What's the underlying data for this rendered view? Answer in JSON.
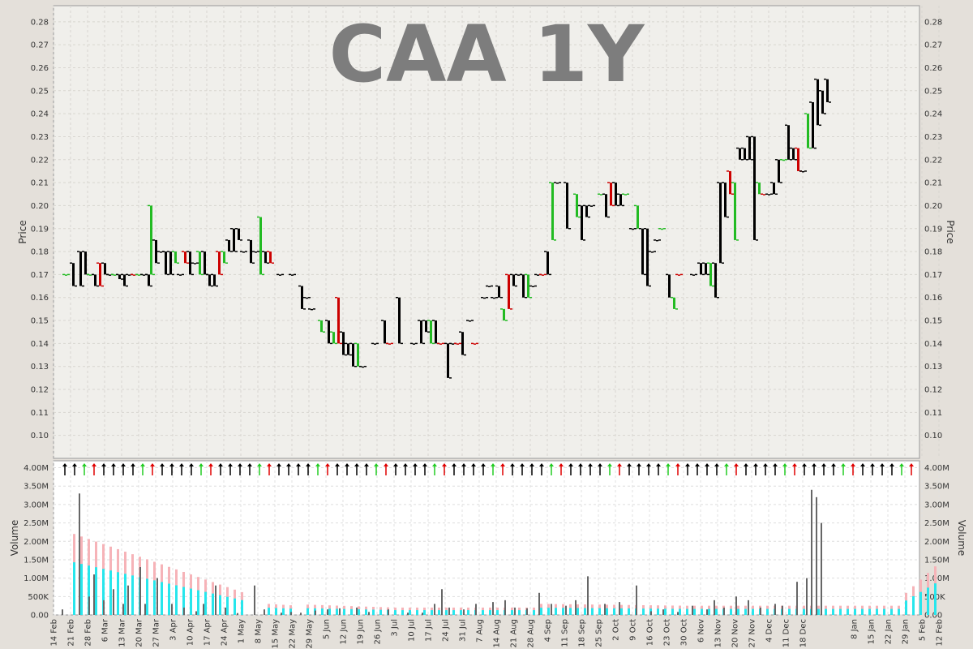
{
  "chart_data": [
    {
      "type": "ohlc",
      "title": "CAA 1Y",
      "ylabel": "Price",
      "ylim": [
        0.09,
        0.287
      ],
      "yticks": [
        "0.10",
        "0.11",
        "0.12",
        "0.13",
        "0.14",
        "0.15",
        "0.16",
        "0.17",
        "0.18",
        "0.19",
        "0.20",
        "0.21",
        "0.22",
        "0.23",
        "0.24",
        "0.25",
        "0.26",
        "0.27",
        "0.28"
      ],
      "grid": true,
      "series": [
        {
          "name": "price",
          "points": [
            [
              0,
              0.17,
              0.17
            ],
            [
              3,
              0.165,
              0.175
            ],
            [
              6,
              0.165,
              0.18
            ],
            [
              8,
              0.17,
              0.18
            ],
            [
              10,
              0.17,
              0.17
            ],
            [
              12,
              0.165,
              0.17
            ],
            [
              14,
              0.165,
              0.175
            ],
            [
              16,
              0.17,
              0.175
            ],
            [
              18,
              0.17,
              0.17
            ],
            [
              20,
              0.17,
              0.17
            ],
            [
              22,
              0.168,
              0.17
            ],
            [
              24,
              0.165,
              0.17
            ],
            [
              26,
              0.17,
              0.17
            ],
            [
              28,
              0.17,
              0.17
            ],
            [
              30,
              0.17,
              0.17
            ],
            [
              32,
              0.17,
              0.17
            ],
            [
              34,
              0.165,
              0.17
            ],
            [
              35,
              0.17,
              0.2
            ],
            [
              37,
              0.175,
              0.185
            ],
            [
              39,
              0.18,
              0.18
            ],
            [
              41,
              0.17,
              0.18
            ],
            [
              43,
              0.17,
              0.18
            ],
            [
              45,
              0.175,
              0.18
            ],
            [
              47,
              0.17,
              0.17
            ],
            [
              49,
              0.175,
              0.18
            ],
            [
              51,
              0.17,
              0.18
            ],
            [
              53,
              0.175,
              0.175
            ],
            [
              55,
              0.17,
              0.18
            ],
            [
              57,
              0.17,
              0.18
            ],
            [
              59,
              0.165,
              0.17
            ],
            [
              61,
              0.165,
              0.17
            ],
            [
              63,
              0.17,
              0.18
            ],
            [
              65,
              0.175,
              0.18
            ],
            [
              67,
              0.18,
              0.185
            ],
            [
              69,
              0.18,
              0.19
            ],
            [
              71,
              0.185,
              0.19
            ],
            [
              73,
              0.18,
              0.18
            ],
            [
              76,
              0.175,
              0.185
            ],
            [
              78,
              0.18,
              0.18
            ],
            [
              80,
              0.17,
              0.195
            ],
            [
              82,
              0.175,
              0.18
            ],
            [
              84,
              0.175,
              0.18
            ],
            [
              88,
              0.17,
              0.17
            ],
            [
              93,
              0.17,
              0.17
            ],
            [
              97,
              0.155,
              0.165
            ],
            [
              99,
              0.16,
              0.16
            ],
            [
              101,
              0.155,
              0.155
            ],
            [
              105,
              0.145,
              0.15
            ],
            [
              108,
              0.14,
              0.15
            ],
            [
              110,
              0.14,
              0.145
            ],
            [
              112,
              0.14,
              0.16
            ],
            [
              114,
              0.135,
              0.145
            ],
            [
              116,
              0.135,
              0.14
            ],
            [
              118,
              0.13,
              0.14
            ],
            [
              120,
              0.13,
              0.14
            ],
            [
              122,
              0.13,
              0.13
            ],
            [
              127,
              0.14,
              0.14
            ],
            [
              131,
              0.14,
              0.15
            ],
            [
              133,
              0.14,
              0.14
            ],
            [
              137,
              0.14,
              0.16
            ],
            [
              143,
              0.14,
              0.14
            ],
            [
              146,
              0.14,
              0.15
            ],
            [
              148,
              0.145,
              0.15
            ],
            [
              150,
              0.14,
              0.15
            ],
            [
              152,
              0.14,
              0.15
            ],
            [
              154,
              0.14,
              0.14
            ],
            [
              157,
              0.125,
              0.14
            ],
            [
              159,
              0.14,
              0.14
            ],
            [
              161,
              0.14,
              0.14
            ],
            [
              163,
              0.135,
              0.145
            ],
            [
              166,
              0.15,
              0.15
            ],
            [
              168,
              0.14,
              0.14
            ],
            [
              172,
              0.16,
              0.16
            ],
            [
              174,
              0.165,
              0.165
            ],
            [
              176,
              0.16,
              0.16
            ],
            [
              178,
              0.16,
              0.165
            ],
            [
              180,
              0.15,
              0.155
            ],
            [
              182,
              0.155,
              0.17
            ],
            [
              184,
              0.165,
              0.17
            ],
            [
              186,
              0.17,
              0.17
            ],
            [
              188,
              0.16,
              0.17
            ],
            [
              190,
              0.16,
              0.17
            ],
            [
              192,
              0.165,
              0.165
            ],
            [
              194,
              0.17,
              0.17
            ],
            [
              196,
              0.17,
              0.17
            ],
            [
              198,
              0.17,
              0.18
            ],
            [
              200,
              0.185,
              0.21
            ],
            [
              202,
              0.21,
              0.21
            ],
            [
              206,
              0.19,
              0.21
            ],
            [
              210,
              0.195,
              0.205
            ],
            [
              212,
              0.185,
              0.2
            ],
            [
              214,
              0.195,
              0.2
            ],
            [
              216,
              0.2,
              0.2
            ],
            [
              220,
              0.205,
              0.205
            ],
            [
              222,
              0.195,
              0.205
            ],
            [
              224,
              0.2,
              0.21
            ],
            [
              226,
              0.2,
              0.21
            ],
            [
              228,
              0.2,
              0.205
            ],
            [
              230,
              0.205,
              0.205
            ],
            [
              233,
              0.19,
              0.19
            ],
            [
              235,
              0.19,
              0.2
            ],
            [
              237,
              0.17,
              0.19
            ],
            [
              239,
              0.165,
              0.19
            ],
            [
              241,
              0.18,
              0.18
            ],
            [
              243,
              0.185,
              0.185
            ],
            [
              245,
              0.19,
              0.19
            ],
            [
              248,
              0.16,
              0.17
            ],
            [
              250,
              0.155,
              0.16
            ],
            [
              252,
              0.17,
              0.17
            ],
            [
              258,
              0.17,
              0.17
            ],
            [
              261,
              0.17,
              0.175
            ],
            [
              263,
              0.17,
              0.175
            ],
            [
              265,
              0.165,
              0.175
            ],
            [
              267,
              0.16,
              0.175
            ],
            [
              269,
              0.175,
              0.21
            ],
            [
              271,
              0.195,
              0.21
            ],
            [
              273,
              0.205,
              0.215
            ],
            [
              275,
              0.185,
              0.21
            ],
            [
              277,
              0.22,
              0.225
            ],
            [
              279,
              0.22,
              0.225
            ],
            [
              281,
              0.22,
              0.23
            ],
            [
              283,
              0.185,
              0.23
            ],
            [
              285,
              0.205,
              0.21
            ],
            [
              287,
              0.205,
              0.205
            ],
            [
              289,
              0.205,
              0.205
            ],
            [
              291,
              0.205,
              0.21
            ],
            [
              293,
              0.21,
              0.22
            ],
            [
              295,
              0.22,
              0.22
            ],
            [
              297,
              0.22,
              0.235
            ],
            [
              299,
              0.22,
              0.225
            ],
            [
              301,
              0.215,
              0.225
            ],
            [
              303,
              0.215,
              0.215
            ],
            [
              305,
              0.225,
              0.24
            ],
            [
              307,
              0.225,
              0.245
            ],
            [
              309,
              0.235,
              0.255
            ],
            [
              311,
              0.24,
              0.25
            ],
            [
              313,
              0.245,
              0.255
            ]
          ]
        }
      ]
    },
    {
      "type": "bar",
      "ylabel": "Volume",
      "ylim": [
        0,
        4000000
      ],
      "yticks": [
        "0.00",
        "500K",
        "1.00M",
        "1.50M",
        "2.00M",
        "2.50M",
        "3.00M",
        "3.50M",
        "4.00M"
      ],
      "xlabels": [
        "14 Feb",
        "21 Feb",
        "28 Feb",
        "6 Mar",
        "13 Mar",
        "20 Mar",
        "27 Mar",
        "3 Apr",
        "10 Apr",
        "17 Apr",
        "24 Apr",
        "1 May",
        "8 May",
        "15 May",
        "22 May",
        "29 May",
        "5 Jun",
        "12 Jun",
        "19 Jun",
        "26 Jun",
        "3 Jul",
        "10 Jul",
        "17 Jul",
        "24 Jul",
        "31 Jul",
        "7 Aug",
        "14 Aug",
        "21 Aug",
        "28 Aug",
        "4 Sep",
        "11 Sep",
        "18 Sep",
        "25 Sep",
        "2 Oct",
        "9 Oct",
        "16 Oct",
        "23 Oct",
        "30 Oct",
        "6 Nov",
        "13 Nov",
        "20 Nov",
        "27 Nov",
        "4 Dec",
        "11 Dec",
        "18 Dec",
        "8 Jan",
        "15 Jan",
        "22 Jan",
        "29 Jan",
        "5 Feb",
        "12 Feb"
      ],
      "xdays": [
        0,
        7,
        14,
        21,
        28,
        35,
        42,
        49,
        56,
        63,
        70,
        77,
        84,
        91,
        98,
        105,
        112,
        119,
        126,
        133,
        140,
        147,
        154,
        161,
        168,
        175,
        182,
        189,
        196,
        203,
        210,
        217,
        224,
        231,
        238,
        245,
        252,
        259,
        266,
        273,
        280,
        287,
        294,
        301,
        308,
        329,
        336,
        343,
        350,
        357,
        364
      ],
      "grid": true,
      "series": [
        {
          "name": "volume",
          "x": [
            3,
            10,
            14,
            16,
            20,
            24,
            28,
            30,
            35,
            37,
            42,
            48,
            53,
            58,
            61,
            66,
            70,
            75,
            82,
            86,
            93,
            97,
            101,
            107,
            112,
            117,
            124,
            129,
            137,
            145,
            151,
            156,
            159,
            162,
            168,
            173,
            180,
            185,
            189,
            194,
            199,
            204,
            210,
            214,
            219,
            226,
            232,
            239,
            245,
            250,
            256,
            262,
            268,
            271,
            275,
            280,
            285,
            290,
            296,
            299,
            305,
            309,
            311,
            313,
            315
          ],
          "values": [
            150000,
            3300000,
            500000,
            1100000,
            400000,
            700000,
            300000,
            800000,
            1300000,
            300000,
            1000000,
            300000,
            200000,
            100000,
            300000,
            800000,
            200000,
            50000,
            800000,
            150000,
            60000,
            80000,
            60000,
            120000,
            150000,
            180000,
            200000,
            80000,
            150000,
            60000,
            60000,
            300000,
            700000,
            200000,
            150000,
            300000,
            350000,
            400000,
            200000,
            180000,
            600000,
            300000,
            250000,
            400000,
            1050000,
            300000,
            350000,
            800000,
            100000,
            150000,
            80000,
            250000,
            150000,
            400000,
            200000,
            500000,
            400000,
            200000,
            300000,
            250000,
            900000,
            1000000,
            3400000,
            3200000,
            2500000
          ]
        }
      ]
    }
  ]
}
